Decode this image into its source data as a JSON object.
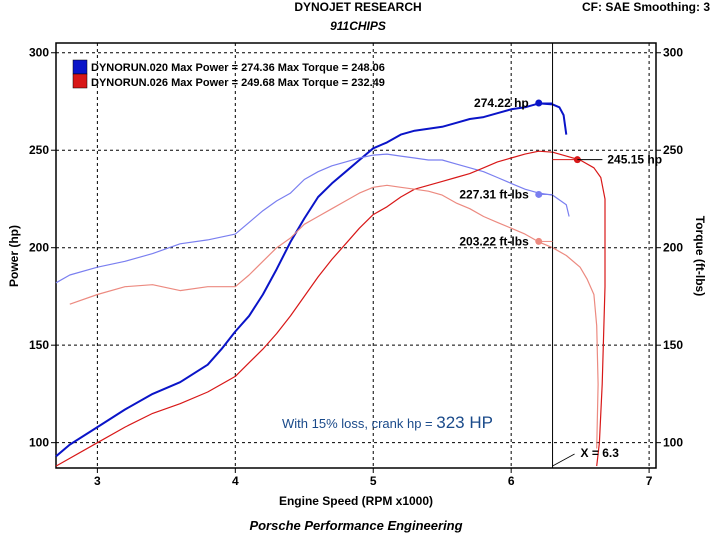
{
  "header": {
    "title": "DYNOJET RESEARCH",
    "subtitle": "911CHIPS",
    "settings": "CF: SAE  Smoothing: 3"
  },
  "footer": {
    "caption": "Porsche Performance Engineering"
  },
  "colors": {
    "blue": "#0a14c8",
    "blue_light": "#7a7ff0",
    "red": "#d81818",
    "red_light": "#ec8a80",
    "annotation": "#1a4a8a"
  },
  "chart_data": {
    "type": "line",
    "xlabel": "Engine Speed (RPM x1000)",
    "ylabel": "Power (hp)",
    "y2label": "Torque (ft-lbs)",
    "xlim": [
      2.7,
      7.05
    ],
    "ylim": [
      87,
      305
    ],
    "xticks": [
      3,
      4,
      5,
      6,
      7
    ],
    "yticks": [
      100,
      150,
      200,
      250,
      300
    ],
    "grid": true,
    "legend": [
      {
        "label": "DYNORUN.020 Max Power = 274.36 Max Torque = 248.06",
        "color": "#0a14c8"
      },
      {
        "label": "DYNORUN.026 Max Power = 249.68 Max Torque = 232.49",
        "color": "#d81818"
      }
    ],
    "series": [
      {
        "name": "DYNORUN.020",
        "kind": "power",
        "color": "#0a14c8",
        "x": [
          2.7,
          2.8,
          3.0,
          3.2,
          3.4,
          3.6,
          3.8,
          3.9,
          4.0,
          4.1,
          4.2,
          4.3,
          4.4,
          4.5,
          4.6,
          4.7,
          4.8,
          4.9,
          5.0,
          5.1,
          5.2,
          5.3,
          5.4,
          5.5,
          5.6,
          5.7,
          5.8,
          5.9,
          6.0,
          6.1,
          6.2,
          6.3,
          6.35,
          6.38,
          6.4
        ],
        "y": [
          93,
          99,
          108,
          117,
          125,
          131,
          140,
          148,
          157,
          165,
          176,
          189,
          203,
          215,
          226,
          233,
          239,
          245,
          251,
          254,
          258,
          260,
          261,
          262,
          264,
          266,
          267,
          269,
          271,
          272,
          274,
          273.5,
          272,
          268,
          258
        ]
      },
      {
        "name": "DYNORUN.020",
        "kind": "torque",
        "color": "#7a7ff0",
        "x": [
          2.7,
          2.8,
          3.0,
          3.2,
          3.4,
          3.6,
          3.8,
          4.0,
          4.1,
          4.2,
          4.3,
          4.4,
          4.5,
          4.6,
          4.7,
          4.8,
          4.9,
          5.0,
          5.1,
          5.2,
          5.3,
          5.4,
          5.5,
          5.6,
          5.7,
          5.8,
          5.9,
          6.0,
          6.1,
          6.2,
          6.3,
          6.4,
          6.42
        ],
        "y": [
          182,
          186,
          190,
          193,
          197,
          202,
          204,
          207,
          213,
          219,
          224,
          228,
          235,
          239,
          242,
          244,
          246,
          247.5,
          248,
          247,
          246,
          245,
          245,
          243,
          241,
          239,
          236,
          233,
          230,
          228,
          227,
          222,
          216
        ]
      },
      {
        "name": "DYNORUN.026",
        "kind": "power",
        "color": "#d81818",
        "x": [
          2.7,
          3.0,
          3.2,
          3.4,
          3.6,
          3.8,
          4.0,
          4.1,
          4.2,
          4.3,
          4.4,
          4.5,
          4.6,
          4.7,
          4.8,
          4.9,
          5.0,
          5.1,
          5.2,
          5.3,
          5.4,
          5.5,
          5.6,
          5.7,
          5.8,
          5.9,
          6.0,
          6.1,
          6.2,
          6.3,
          6.4,
          6.5,
          6.6,
          6.65,
          6.68,
          6.68,
          6.66,
          6.64,
          6.62
        ],
        "y": [
          88,
          100,
          108,
          115,
          120,
          126,
          134,
          141,
          148,
          156,
          165,
          175,
          185,
          194,
          202,
          210,
          217,
          221,
          226,
          230,
          232,
          234,
          236,
          238,
          241,
          244,
          246,
          248,
          249.5,
          249,
          247,
          245,
          241,
          236,
          225,
          180,
          130,
          100,
          88
        ]
      },
      {
        "name": "DYNORUN.026",
        "kind": "torque",
        "color": "#ec8a80",
        "x": [
          2.8,
          3.0,
          3.2,
          3.4,
          3.6,
          3.8,
          4.0,
          4.1,
          4.2,
          4.3,
          4.4,
          4.5,
          4.6,
          4.7,
          4.8,
          4.9,
          5.0,
          5.1,
          5.2,
          5.3,
          5.4,
          5.5,
          5.6,
          5.7,
          5.8,
          5.9,
          6.0,
          6.1,
          6.2,
          6.3,
          6.4,
          6.5,
          6.55,
          6.6,
          6.62,
          6.63,
          6.62
        ],
        "y": [
          171,
          176,
          180,
          181,
          178,
          180,
          180,
          186,
          193,
          200,
          205,
          212,
          216,
          220,
          224,
          228,
          231,
          232,
          231,
          230,
          229,
          227,
          223,
          220,
          216,
          213,
          210,
          207,
          203,
          200,
          196,
          190,
          184,
          176,
          160,
          130,
          97
        ]
      }
    ],
    "markers": [
      {
        "x": 6.2,
        "y": 274.22,
        "label": "274.22 hp",
        "color": "#0a14c8"
      },
      {
        "x": 6.48,
        "y": 245.15,
        "label": "245.15 hp",
        "color": "#d81818"
      },
      {
        "x": 6.2,
        "y": 227.31,
        "label": "227.31 ft-lbs",
        "color": "#7a7ff0"
      },
      {
        "x": 6.2,
        "y": 203.22,
        "label": "203.22 ft-lbs",
        "color": "#ec8a80"
      }
    ],
    "cursor": {
      "x": 6.3,
      "label": "X = 6.3"
    },
    "annotation": {
      "text": "With 15% loss, crank hp = ",
      "value": "323 HP"
    }
  }
}
